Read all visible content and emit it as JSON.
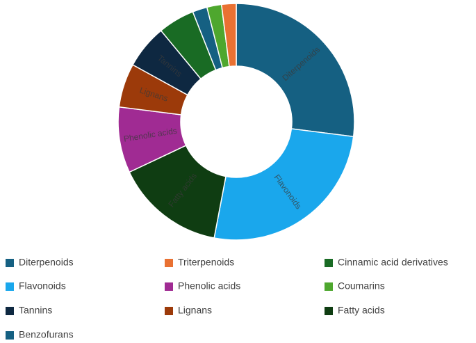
{
  "chart_data": {
    "type": "doughnut",
    "categories": [
      "Diterpenoids",
      "Flavonoids",
      "Fatty acids",
      "Phenolic acids",
      "Lignans",
      "Tannins",
      "Cinnamic acid derivatives",
      "Benzofurans",
      "Coumarins",
      "Triterpenoids"
    ],
    "values": [
      27,
      26,
      15,
      9,
      6,
      6,
      5,
      2,
      2,
      2
    ],
    "colors": [
      "#156082",
      "#1aa7ec",
      "#0f3d12",
      "#a02b93",
      "#9c3a0a",
      "#0e2841",
      "#196b24",
      "#156082",
      "#4ea72e",
      "#e97132"
    ],
    "slice_labels": [
      true,
      true,
      true,
      true,
      true,
      true,
      false,
      false,
      false,
      false
    ]
  }
}
